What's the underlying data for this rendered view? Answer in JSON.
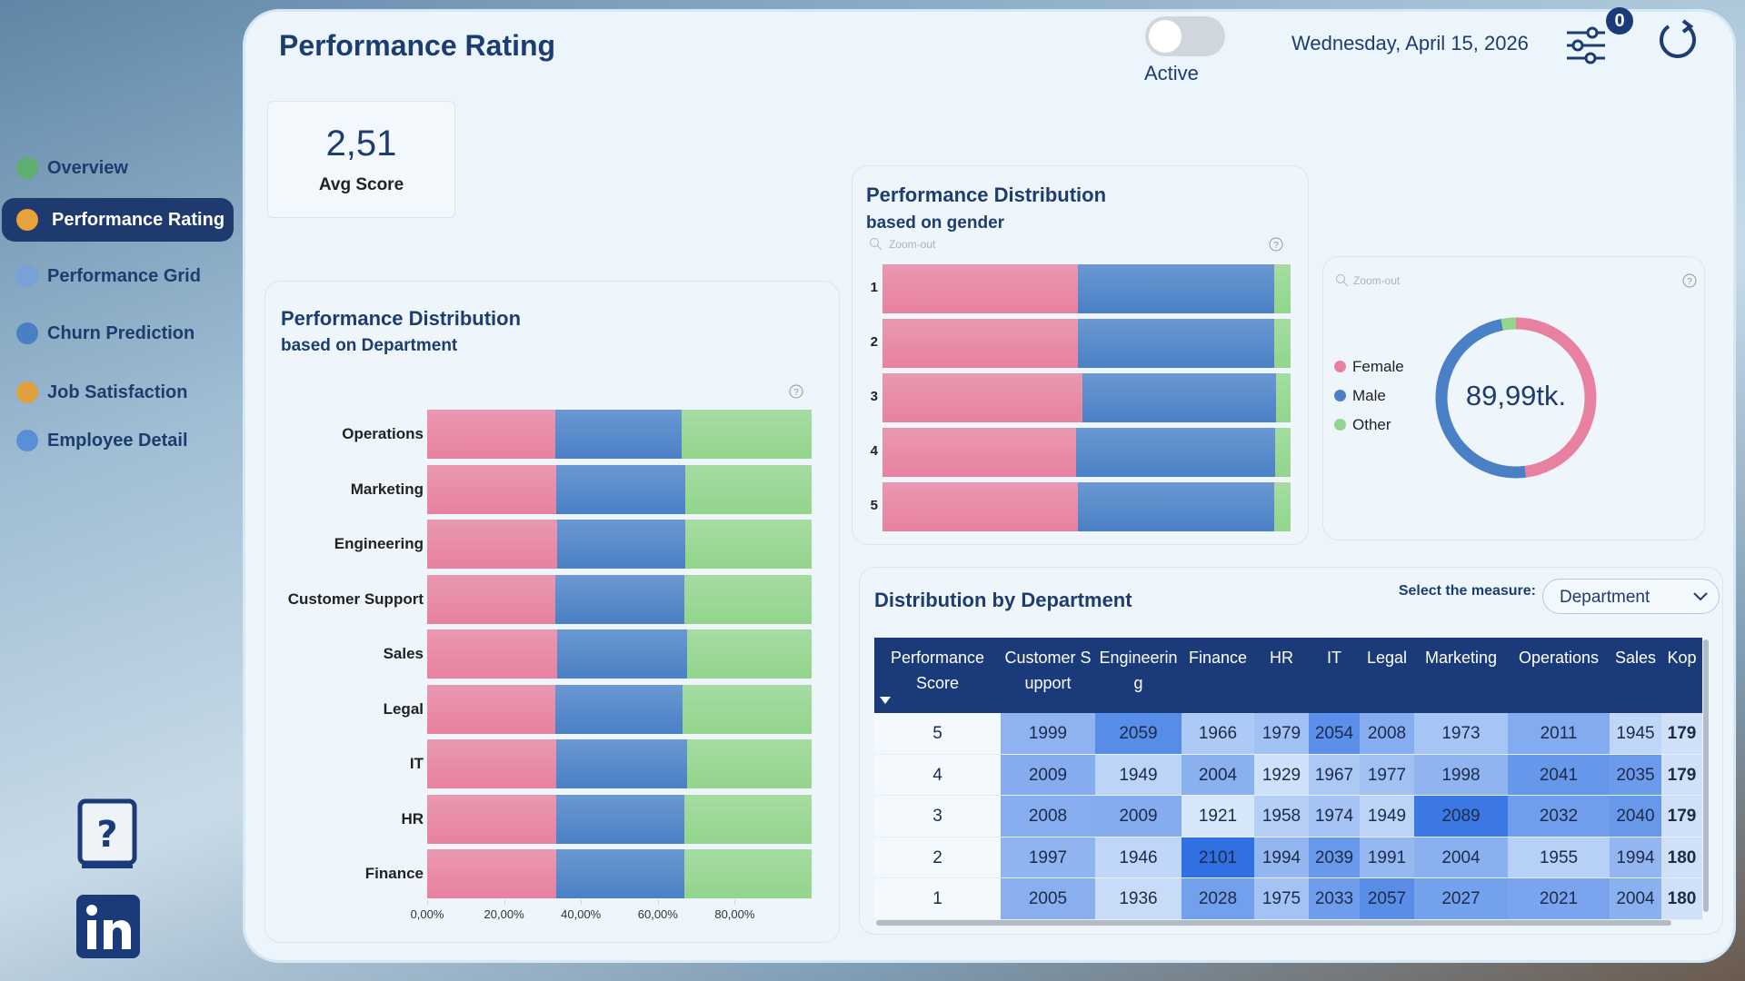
{
  "sidebar": {
    "items": [
      "Overview",
      "Performance Rating",
      "Performance Grid",
      "Churn Prediction",
      "Job Satisfaction",
      "Employee Detail"
    ],
    "active": 1
  },
  "header": {
    "title": "Performance Rating",
    "toggle_label": "Active",
    "date": "Wednesday, April 15, 2026",
    "filter_count": 0
  },
  "kpi": {
    "value": "2,51",
    "label": "Avg Score"
  },
  "chart_data": [
    {
      "type": "bar",
      "horizontal": true,
      "stacked": true,
      "title": "Performance Distribution",
      "subtitle": "based on Department",
      "categories": [
        "Operations",
        "Marketing",
        "Engineering",
        "Customer Support",
        "Sales",
        "Legal",
        "IT",
        "HR",
        "Finance"
      ],
      "series": [
        {
          "name": "Female",
          "color": "#e8819f",
          "values": [
            33.3,
            33.6,
            33.9,
            33.3,
            33.9,
            33.3,
            33.6,
            33.6,
            33.6
          ]
        },
        {
          "name": "Male",
          "color": "#4a80c6",
          "values": [
            33.0,
            33.6,
            33.3,
            33.6,
            33.6,
            33.2,
            33.9,
            33.3,
            33.3
          ]
        },
        {
          "name": "Other",
          "color": "#93d58c",
          "values": [
            33.7,
            32.8,
            32.8,
            33.1,
            32.5,
            33.5,
            32.5,
            33.1,
            33.1
          ]
        }
      ],
      "xlim": [
        0,
        100
      ],
      "xticks": [
        {
          "value": 0,
          "label": "0,00%"
        },
        {
          "value": 20,
          "label": "20,00%"
        },
        {
          "value": 40,
          "label": "40,00%"
        },
        {
          "value": 60,
          "label": "60,00%"
        },
        {
          "value": 80,
          "label": "80,00%"
        }
      ]
    },
    {
      "type": "bar",
      "horizontal": true,
      "stacked": true,
      "title": "Performance Distribution",
      "subtitle": "based on gender",
      "zoom_label": "Zoom-out",
      "categories": [
        "1",
        "2",
        "3",
        "4",
        "5"
      ],
      "series": [
        {
          "name": "Female",
          "color": "#e8819f",
          "values": [
            47.9,
            47.9,
            49.0,
            47.4,
            47.9
          ]
        },
        {
          "name": "Male",
          "color": "#4a80c6",
          "values": [
            48.2,
            48.0,
            47.4,
            48.8,
            48.0
          ]
        },
        {
          "name": "Other",
          "color": "#93d58c",
          "values": [
            3.9,
            4.1,
            3.6,
            3.8,
            4.1
          ]
        }
      ],
      "xlim": [
        0,
        100
      ]
    },
    {
      "type": "pie",
      "donut": true,
      "zoom_label": "Zoom-out",
      "center_label": "89,99tk.",
      "categories": [
        "Female",
        "Male",
        "Other"
      ],
      "values": [
        48,
        49,
        3
      ],
      "colors": [
        "#e8819f",
        "#4a80c6",
        "#93d58c"
      ]
    }
  ],
  "table": {
    "title": "Distribution by Department",
    "measure_label": "Select the measure:",
    "measure": "Department",
    "columns": [
      "Performance Score",
      "Customer Support",
      "Engineering",
      "Finance",
      "HR",
      "IT",
      "Legal",
      "Marketing",
      "Operations",
      "Sales",
      "Kop"
    ],
    "rows": [
      [
        5,
        1999,
        2059,
        1966,
        1979,
        2054,
        2008,
        1973,
        2011,
        1945,
        "179"
      ],
      [
        4,
        2009,
        1949,
        2004,
        1929,
        1967,
        1977,
        1998,
        2041,
        2035,
        "179"
      ],
      [
        3,
        2008,
        2009,
        1921,
        1958,
        1974,
        1949,
        2089,
        2032,
        2040,
        "179"
      ],
      [
        2,
        1997,
        1946,
        2101,
        1994,
        2039,
        1991,
        2004,
        1955,
        1994,
        "180"
      ],
      [
        1,
        2005,
        1936,
        2028,
        1975,
        2033,
        2057,
        2027,
        2021,
        2004,
        "180"
      ]
    ]
  }
}
